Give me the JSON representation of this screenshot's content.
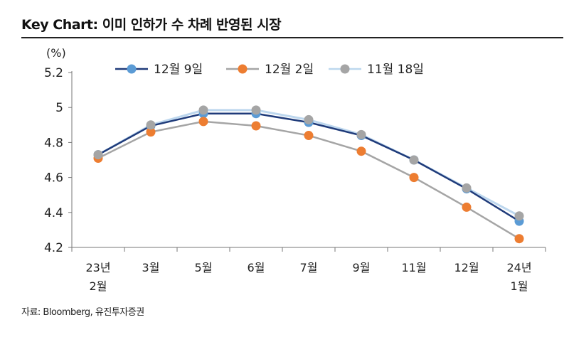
{
  "title": "Key Chart: 이미 인하가 수 차례 반영된 시장",
  "source": "자료: Bloomberg, 유진투자증권",
  "chart_data": {
    "type": "line",
    "ylabel": "(%)",
    "xlabel": "",
    "categories": [
      "23년\n2월",
      "3월",
      "5월",
      "6월",
      "7월",
      "9월",
      "11월",
      "12월",
      "24년\n1월"
    ],
    "ylim": [
      4.2,
      5.2
    ],
    "yticks": [
      "4.2",
      "4.4",
      "4.6",
      "4.8",
      "5",
      "5.2"
    ],
    "grid": false,
    "legend": "top",
    "series": [
      {
        "name": "12월 9일",
        "line_color": "#1f3b7a",
        "marker_color": "#5b9bd5",
        "values": [
          4.73,
          4.895,
          4.965,
          4.965,
          4.915,
          4.84,
          4.7,
          4.535,
          4.35
        ]
      },
      {
        "name": "12월 2일",
        "line_color": "#a5a5a5",
        "marker_color": "#ed7d31",
        "values": [
          4.71,
          4.86,
          4.92,
          4.895,
          4.84,
          4.75,
          4.6,
          4.43,
          4.25
        ]
      },
      {
        "name": "11월 18일",
        "line_color": "#bdd7ee",
        "marker_color": "#a5a5a5",
        "values": [
          4.73,
          4.9,
          4.985,
          4.985,
          4.93,
          4.845,
          4.7,
          4.54,
          4.38
        ]
      }
    ]
  }
}
